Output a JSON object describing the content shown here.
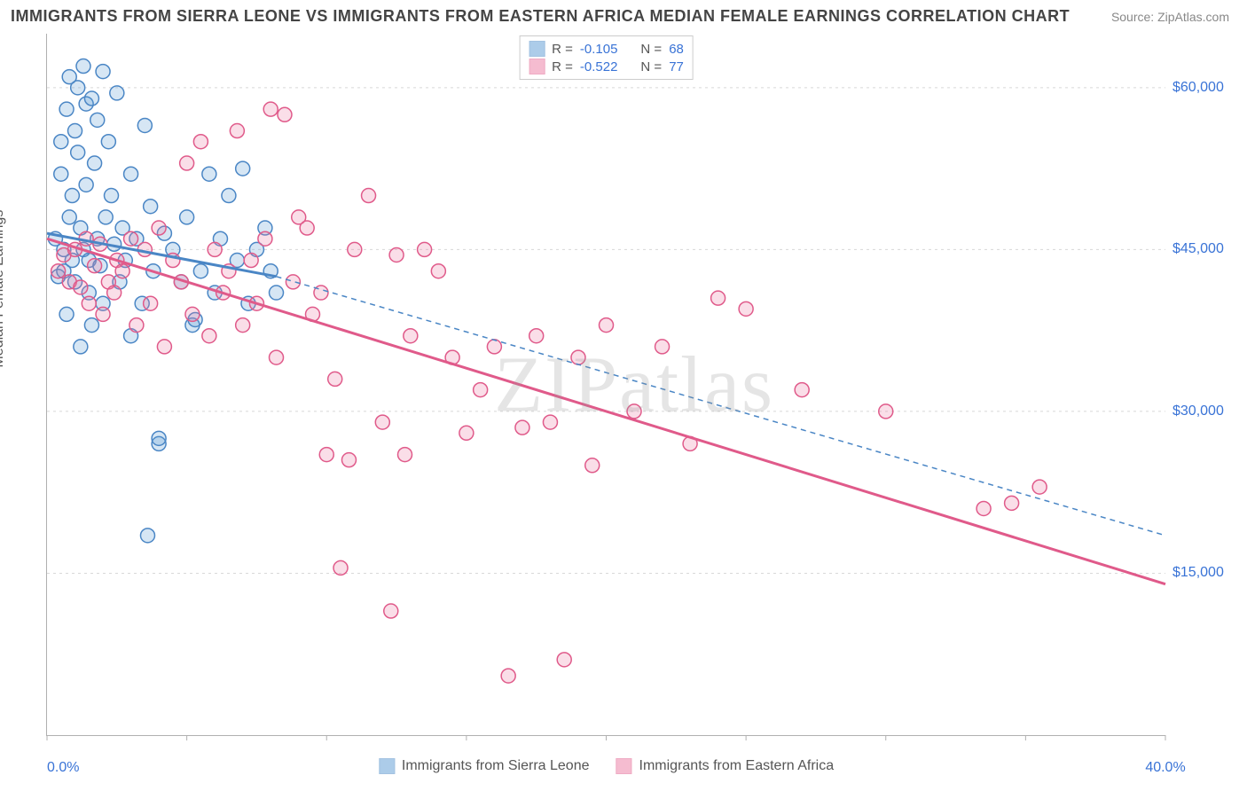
{
  "title": "IMMIGRANTS FROM SIERRA LEONE VS IMMIGRANTS FROM EASTERN AFRICA MEDIAN FEMALE EARNINGS CORRELATION CHART",
  "source": "Source: ZipAtlas.com",
  "watermark": "ZIPatlas",
  "y_axis_title": "Median Female Earnings",
  "chart": {
    "type": "scatter",
    "background_color": "#ffffff",
    "grid_color": "#d8d8d8",
    "axis_color": "#b0b0b0",
    "tick_label_color": "#3973d6",
    "tick_fontsize": 16,
    "xlim": [
      0,
      40
    ],
    "ylim": [
      0,
      65000
    ],
    "x_ticks_minor": [
      0,
      5,
      10,
      15,
      20,
      25,
      30,
      35,
      40
    ],
    "x_min_label": "0.0%",
    "x_max_label": "40.0%",
    "y_ticks": [
      {
        "v": 15000,
        "label": "$15,000"
      },
      {
        "v": 30000,
        "label": "$30,000"
      },
      {
        "v": 45000,
        "label": "$45,000"
      },
      {
        "v": 60000,
        "label": "$60,000"
      }
    ],
    "marker_radius": 8,
    "marker_stroke_width": 1.5,
    "marker_fill_opacity": 0.25,
    "series": [
      {
        "id": "sierra_leone",
        "label": "Immigrants from Sierra Leone",
        "color": "#5b9bd5",
        "stroke": "#4a86c5",
        "R": "-0.105",
        "N": "68",
        "trend": {
          "x1": 0,
          "y1": 46500,
          "x2": 8.2,
          "y2": 42500,
          "style": "solid",
          "width": 3
        },
        "trend_ext": {
          "x1": 8.2,
          "y1": 42500,
          "x2": 40,
          "y2": 18500,
          "style": "dashed",
          "width": 1.5
        },
        "points": [
          [
            0.3,
            46000
          ],
          [
            0.4,
            42500
          ],
          [
            0.5,
            52000
          ],
          [
            0.5,
            55000
          ],
          [
            0.6,
            45000
          ],
          [
            0.6,
            43000
          ],
          [
            0.7,
            58000
          ],
          [
            0.7,
            39000
          ],
          [
            0.8,
            48000
          ],
          [
            0.8,
            61000
          ],
          [
            0.9,
            44000
          ],
          [
            0.9,
            50000
          ],
          [
            1.0,
            56000
          ],
          [
            1.0,
            42000
          ],
          [
            1.1,
            54000
          ],
          [
            1.1,
            60000
          ],
          [
            1.2,
            47000
          ],
          [
            1.2,
            36000
          ],
          [
            1.3,
            62000
          ],
          [
            1.3,
            45000
          ],
          [
            1.4,
            51000
          ],
          [
            1.4,
            58500
          ],
          [
            1.5,
            44000
          ],
          [
            1.5,
            41000
          ],
          [
            1.6,
            59000
          ],
          [
            1.6,
            38000
          ],
          [
            1.7,
            53000
          ],
          [
            1.8,
            46000
          ],
          [
            1.8,
            57000
          ],
          [
            1.9,
            43500
          ],
          [
            2.0,
            61500
          ],
          [
            2.0,
            40000
          ],
          [
            2.1,
            48000
          ],
          [
            2.2,
            55000
          ],
          [
            2.3,
            50000
          ],
          [
            2.4,
            45500
          ],
          [
            2.5,
            59500
          ],
          [
            2.6,
            42000
          ],
          [
            2.7,
            47000
          ],
          [
            2.8,
            44000
          ],
          [
            3.0,
            52000
          ],
          [
            3.0,
            37000
          ],
          [
            3.2,
            46000
          ],
          [
            3.4,
            40000
          ],
          [
            3.5,
            56500
          ],
          [
            3.6,
            18500
          ],
          [
            3.7,
            49000
          ],
          [
            3.8,
            43000
          ],
          [
            4.0,
            27000
          ],
          [
            4.0,
            27500
          ],
          [
            4.2,
            46500
          ],
          [
            4.5,
            45000
          ],
          [
            4.8,
            42000
          ],
          [
            5.0,
            48000
          ],
          [
            5.2,
            38000
          ],
          [
            5.3,
            38500
          ],
          [
            5.5,
            43000
          ],
          [
            5.8,
            52000
          ],
          [
            6.0,
            41000
          ],
          [
            6.2,
            46000
          ],
          [
            6.5,
            50000
          ],
          [
            6.8,
            44000
          ],
          [
            7.0,
            52500
          ],
          [
            7.2,
            40000
          ],
          [
            7.5,
            45000
          ],
          [
            7.8,
            47000
          ],
          [
            8.0,
            43000
          ],
          [
            8.2,
            41000
          ]
        ]
      },
      {
        "id": "eastern_africa",
        "label": "Immigrants from Eastern Africa",
        "color": "#ec7ba3",
        "stroke": "#e05a8a",
        "R": "-0.522",
        "N": "77",
        "trend": {
          "x1": 0,
          "y1": 46000,
          "x2": 40,
          "y2": 14000,
          "style": "solid",
          "width": 3
        },
        "points": [
          [
            0.4,
            43000
          ],
          [
            0.6,
            44500
          ],
          [
            0.8,
            42000
          ],
          [
            1.0,
            45000
          ],
          [
            1.2,
            41500
          ],
          [
            1.4,
            46000
          ],
          [
            1.5,
            40000
          ],
          [
            1.7,
            43500
          ],
          [
            1.9,
            45500
          ],
          [
            2.0,
            39000
          ],
          [
            2.2,
            42000
          ],
          [
            2.4,
            41000
          ],
          [
            2.5,
            44000
          ],
          [
            2.7,
            43000
          ],
          [
            3.0,
            46000
          ],
          [
            3.2,
            38000
          ],
          [
            3.5,
            45000
          ],
          [
            3.7,
            40000
          ],
          [
            4.0,
            47000
          ],
          [
            4.2,
            36000
          ],
          [
            4.5,
            44000
          ],
          [
            4.8,
            42000
          ],
          [
            5.0,
            53000
          ],
          [
            5.2,
            39000
          ],
          [
            5.5,
            55000
          ],
          [
            5.8,
            37000
          ],
          [
            6.0,
            45000
          ],
          [
            6.3,
            41000
          ],
          [
            6.5,
            43000
          ],
          [
            6.8,
            56000
          ],
          [
            7.0,
            38000
          ],
          [
            7.3,
            44000
          ],
          [
            7.5,
            40000
          ],
          [
            7.8,
            46000
          ],
          [
            8.0,
            58000
          ],
          [
            8.2,
            35000
          ],
          [
            8.5,
            57500
          ],
          [
            8.8,
            42000
          ],
          [
            9.0,
            48000
          ],
          [
            9.3,
            47000
          ],
          [
            9.5,
            39000
          ],
          [
            9.8,
            41000
          ],
          [
            10.0,
            26000
          ],
          [
            10.3,
            33000
          ],
          [
            10.5,
            15500
          ],
          [
            10.8,
            25500
          ],
          [
            11.0,
            45000
          ],
          [
            11.5,
            50000
          ],
          [
            12.0,
            29000
          ],
          [
            12.3,
            11500
          ],
          [
            12.5,
            44500
          ],
          [
            12.8,
            26000
          ],
          [
            13.0,
            37000
          ],
          [
            13.5,
            45000
          ],
          [
            14.0,
            43000
          ],
          [
            14.5,
            35000
          ],
          [
            15.0,
            28000
          ],
          [
            15.5,
            32000
          ],
          [
            16.0,
            36000
          ],
          [
            16.5,
            5500
          ],
          [
            17.0,
            28500
          ],
          [
            17.5,
            37000
          ],
          [
            18.0,
            29000
          ],
          [
            18.5,
            7000
          ],
          [
            19.0,
            35000
          ],
          [
            19.5,
            25000
          ],
          [
            20.0,
            38000
          ],
          [
            21.0,
            30000
          ],
          [
            22.0,
            36000
          ],
          [
            23.0,
            27000
          ],
          [
            24.0,
            40500
          ],
          [
            25.0,
            39500
          ],
          [
            30.0,
            30000
          ],
          [
            33.5,
            21000
          ],
          [
            34.5,
            21500
          ],
          [
            35.5,
            23000
          ],
          [
            27.0,
            32000
          ]
        ]
      }
    ]
  },
  "legend_labels": {
    "R": "R =",
    "N": "N ="
  }
}
